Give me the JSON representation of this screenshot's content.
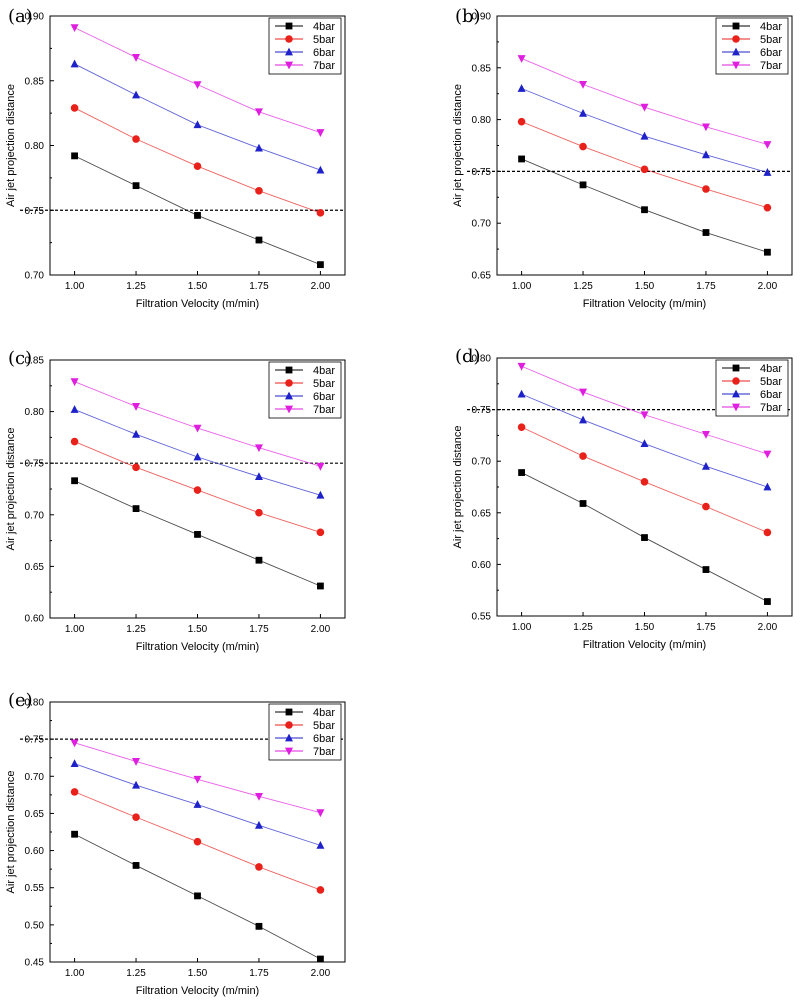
{
  "chart_data": [
    {
      "type": "line",
      "panel_label": "(a)",
      "xlabel": "Filtration Velocity (m/min)",
      "ylabel": "Air jet projection distance",
      "x": [
        1.0,
        1.25,
        1.5,
        1.75,
        2.0
      ],
      "x_tick_labels": [
        "1.00",
        "1.25",
        "1.50",
        "1.75",
        "2.00"
      ],
      "xlim": [
        0.9,
        2.1
      ],
      "ylim": [
        0.7,
        0.9
      ],
      "y_tick_labels": [
        "0.70",
        "0.75",
        "0.80",
        "0.85",
        "0.90"
      ],
      "reference_line": 0.75,
      "legend_position": "top-right",
      "series": [
        {
          "name": "4bar",
          "color": "#000000",
          "marker": "square",
          "values": [
            0.792,
            0.769,
            0.746,
            0.727,
            0.708
          ]
        },
        {
          "name": "5bar",
          "color": "#e8211b",
          "marker": "circle",
          "values": [
            0.829,
            0.805,
            0.784,
            0.765,
            0.748
          ]
        },
        {
          "name": "6bar",
          "color": "#1e22c8",
          "marker": "triangle-up",
          "values": [
            0.863,
            0.839,
            0.816,
            0.798,
            0.781
          ]
        },
        {
          "name": "7bar",
          "color": "#e01ee0",
          "marker": "triangle-down",
          "values": [
            0.891,
            0.868,
            0.847,
            0.826,
            0.81
          ]
        }
      ]
    },
    {
      "type": "line",
      "panel_label": "(b)",
      "xlabel": "Filtration Velocity (m/min)",
      "ylabel": "Air jet projection distance",
      "x": [
        1.0,
        1.25,
        1.5,
        1.75,
        2.0
      ],
      "x_tick_labels": [
        "1.00",
        "1.25",
        "1.50",
        "1.75",
        "2.00"
      ],
      "xlim": [
        0.9,
        2.1
      ],
      "ylim": [
        0.65,
        0.9
      ],
      "y_tick_labels": [
        "0.65",
        "0.70",
        "0.75",
        "0.80",
        "0.85",
        "0.90"
      ],
      "reference_line": 0.75,
      "legend_position": "top-right",
      "series": [
        {
          "name": "4bar",
          "color": "#000000",
          "marker": "square",
          "values": [
            0.762,
            0.737,
            0.713,
            0.691,
            0.672
          ]
        },
        {
          "name": "5bar",
          "color": "#e8211b",
          "marker": "circle",
          "values": [
            0.798,
            0.774,
            0.752,
            0.733,
            0.715
          ]
        },
        {
          "name": "6bar",
          "color": "#1e22c8",
          "marker": "triangle-up",
          "values": [
            0.83,
            0.806,
            0.784,
            0.766,
            0.749
          ]
        },
        {
          "name": "7bar",
          "color": "#e01ee0",
          "marker": "triangle-down",
          "values": [
            0.859,
            0.834,
            0.812,
            0.793,
            0.776
          ]
        }
      ]
    },
    {
      "type": "line",
      "panel_label": "(c)",
      "xlabel": "Filtration Velocity (m/min)",
      "ylabel": "Air jet projection distance",
      "x": [
        1.0,
        1.25,
        1.5,
        1.75,
        2.0
      ],
      "x_tick_labels": [
        "1.00",
        "1.25",
        "1.50",
        "1.75",
        "2.00"
      ],
      "xlim": [
        0.9,
        2.1
      ],
      "ylim": [
        0.6,
        0.85
      ],
      "y_tick_labels": [
        "0.60",
        "0.65",
        "0.70",
        "0.75",
        "0.80",
        "0.85"
      ],
      "reference_line": 0.75,
      "legend_position": "top-right",
      "series": [
        {
          "name": "4bar",
          "color": "#000000",
          "marker": "square",
          "values": [
            0.733,
            0.706,
            0.681,
            0.656,
            0.631
          ]
        },
        {
          "name": "5bar",
          "color": "#e8211b",
          "marker": "circle",
          "values": [
            0.771,
            0.746,
            0.724,
            0.702,
            0.683
          ]
        },
        {
          "name": "6bar",
          "color": "#1e22c8",
          "marker": "triangle-up",
          "values": [
            0.802,
            0.778,
            0.756,
            0.737,
            0.719
          ]
        },
        {
          "name": "7bar",
          "color": "#e01ee0",
          "marker": "triangle-down",
          "values": [
            0.829,
            0.805,
            0.784,
            0.765,
            0.747
          ]
        }
      ]
    },
    {
      "type": "line",
      "panel_label": "(d)",
      "xlabel": "Filtration Velocity (m/min)",
      "ylabel": "Air jet projection distance",
      "x": [
        1.0,
        1.25,
        1.5,
        1.75,
        2.0
      ],
      "x_tick_labels": [
        "1.00",
        "1.25",
        "1.50",
        "1.75",
        "2.00"
      ],
      "xlim": [
        0.9,
        2.1
      ],
      "ylim": [
        0.55,
        0.8
      ],
      "y_tick_labels": [
        "0.55",
        "0.60",
        "0.65",
        "0.70",
        "0.75",
        "0.80"
      ],
      "reference_line": 0.75,
      "legend_position": "top-right",
      "series": [
        {
          "name": "4bar",
          "color": "#000000",
          "marker": "square",
          "values": [
            0.689,
            0.659,
            0.626,
            0.595,
            0.564
          ]
        },
        {
          "name": "5bar",
          "color": "#e8211b",
          "marker": "circle",
          "values": [
            0.733,
            0.705,
            0.68,
            0.656,
            0.631
          ]
        },
        {
          "name": "6bar",
          "color": "#1e22c8",
          "marker": "triangle-up",
          "values": [
            0.765,
            0.74,
            0.717,
            0.695,
            0.675
          ]
        },
        {
          "name": "7bar",
          "color": "#e01ee0",
          "marker": "triangle-down",
          "values": [
            0.792,
            0.767,
            0.745,
            0.726,
            0.707
          ]
        }
      ]
    },
    {
      "type": "line",
      "panel_label": "(e)",
      "xlabel": "Filtration Velocity (m/min)",
      "ylabel": "Air jet projection distance",
      "x": [
        1.0,
        1.25,
        1.5,
        1.75,
        2.0
      ],
      "x_tick_labels": [
        "1.00",
        "1.25",
        "1.50",
        "1.75",
        "2.00"
      ],
      "xlim": [
        0.9,
        2.1
      ],
      "ylim": [
        0.45,
        0.8
      ],
      "y_tick_labels": [
        "0.45",
        "0.50",
        "0.55",
        "0.60",
        "0.65",
        "0.70",
        "0.75",
        "0.80"
      ],
      "reference_line": 0.75,
      "legend_position": "top-right",
      "series": [
        {
          "name": "4bar",
          "color": "#000000",
          "marker": "square",
          "values": [
            0.622,
            0.58,
            0.539,
            0.498,
            0.454
          ]
        },
        {
          "name": "5bar",
          "color": "#e8211b",
          "marker": "circle",
          "values": [
            0.679,
            0.645,
            0.612,
            0.578,
            0.547
          ]
        },
        {
          "name": "6bar",
          "color": "#1e22c8",
          "marker": "triangle-up",
          "values": [
            0.717,
            0.688,
            0.662,
            0.634,
            0.607
          ]
        },
        {
          "name": "7bar",
          "color": "#e01ee0",
          "marker": "triangle-down",
          "values": [
            0.745,
            0.72,
            0.696,
            0.673,
            0.651
          ]
        }
      ]
    }
  ]
}
